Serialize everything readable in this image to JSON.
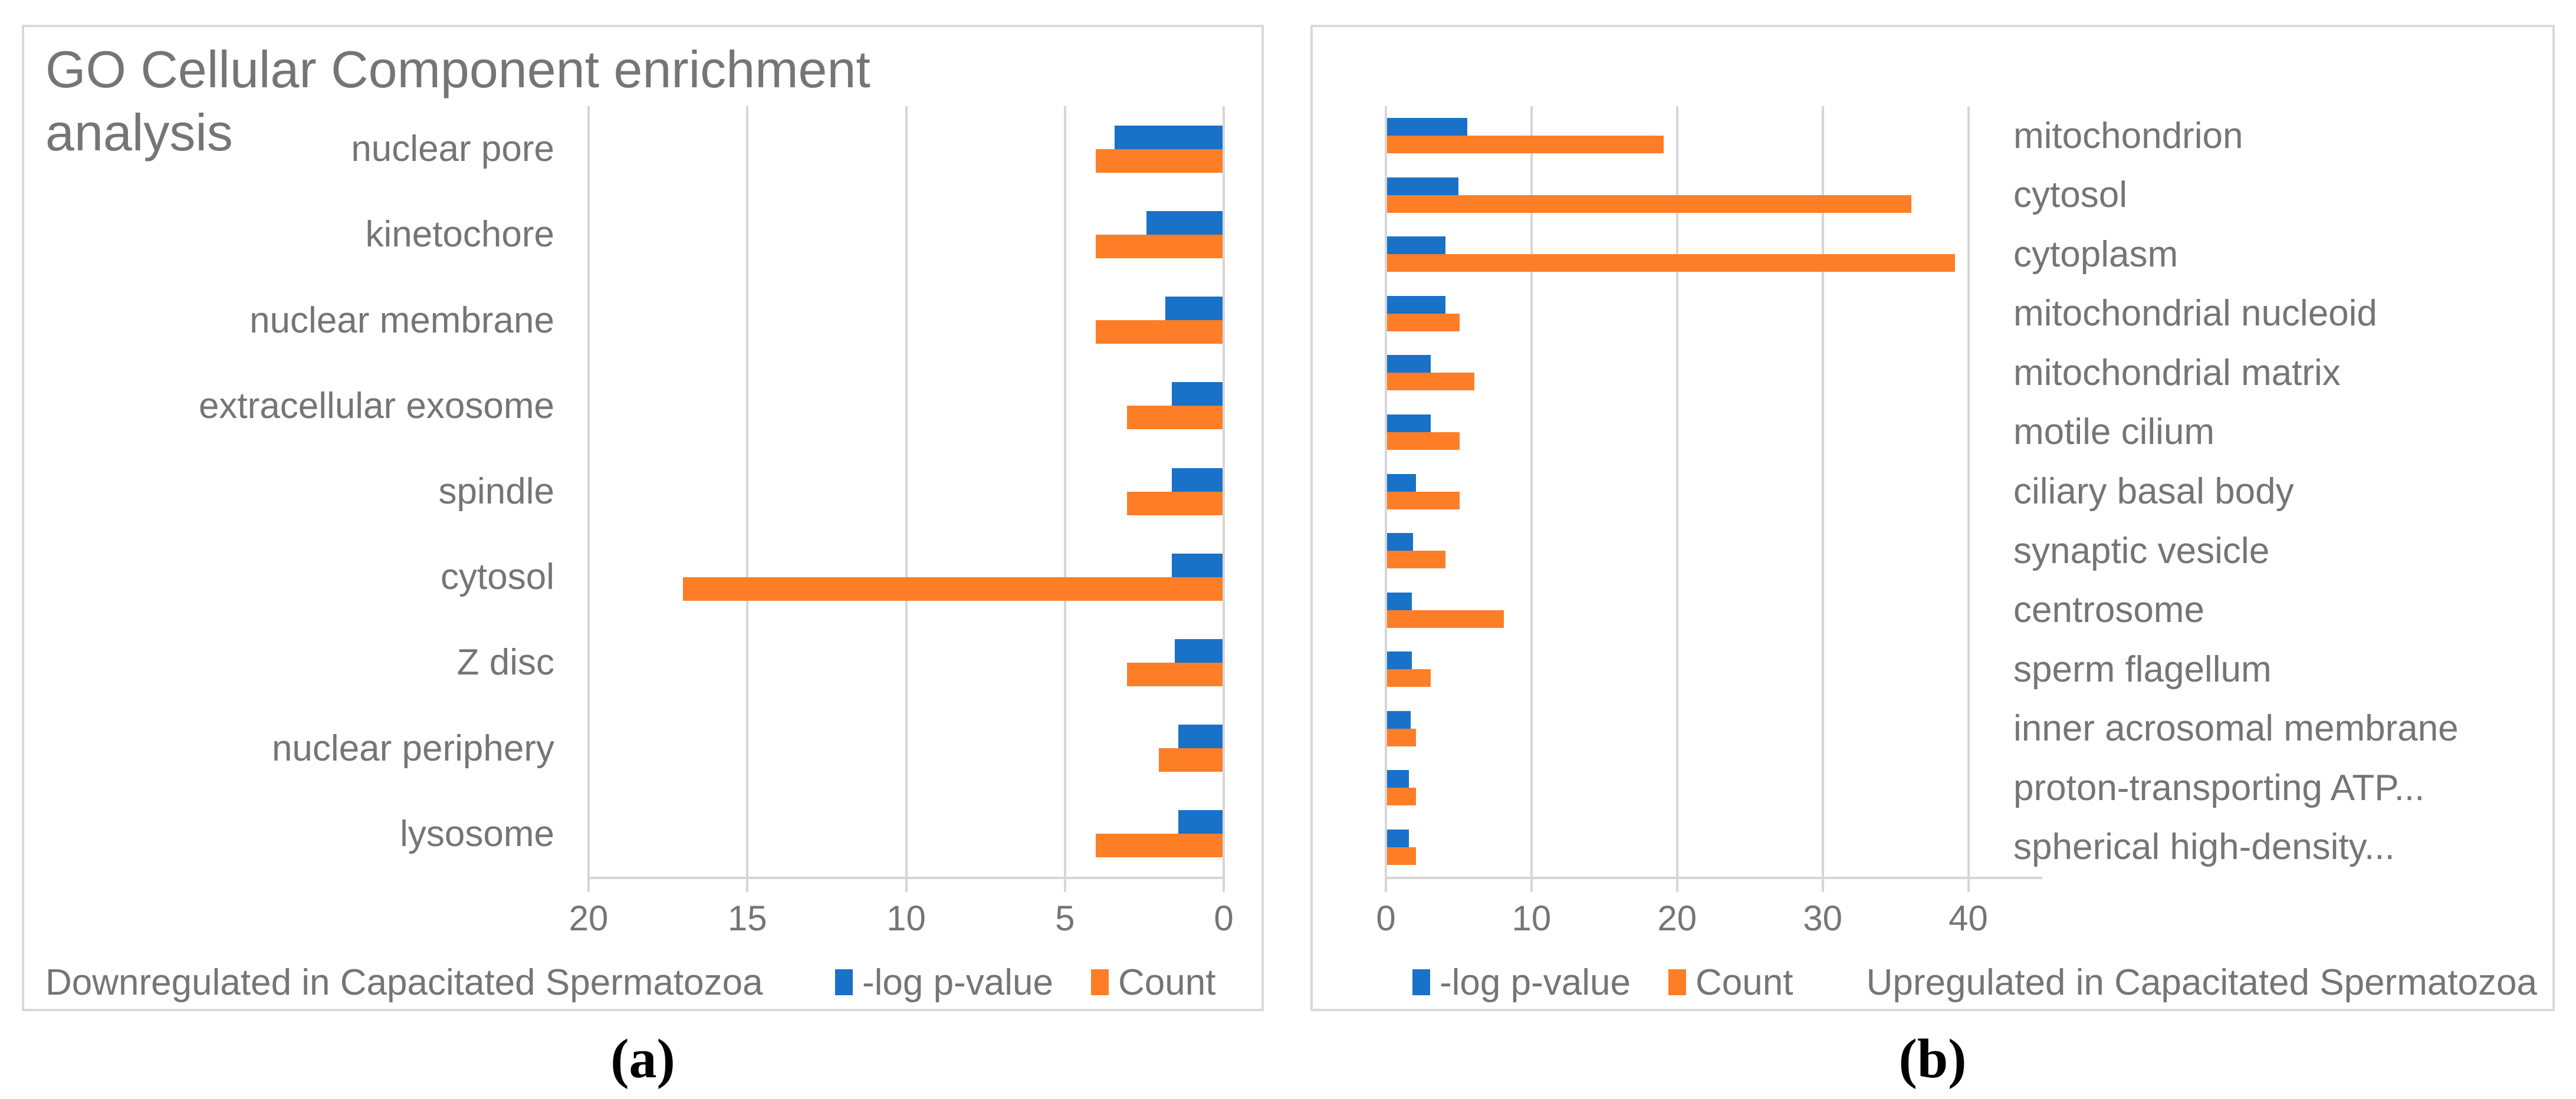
{
  "figure": {
    "title": "GO Cellular Component enrichment analysis",
    "captions": {
      "a": "(a)",
      "b": "(b)"
    }
  },
  "colors": {
    "pvalue_blue": "#1971C8",
    "count_orange": "#FD7E27",
    "grid_gray": "#D6D6D6",
    "border_gray": "#D9D9D9",
    "text_gray": "#757575"
  },
  "legend": {
    "pvalue_label": "-log p-value",
    "count_label": "Count"
  },
  "chart_data": [
    {
      "panel": "a",
      "type": "bar",
      "orientation": "horizontal",
      "axis_reversed": true,
      "grid": true,
      "legend_position": "bottom",
      "footer": "Downregulated in Capacitated Spermatozoa",
      "xlim": [
        0,
        20
      ],
      "ticks": [
        20,
        15,
        10,
        5,
        0
      ],
      "categories": [
        "nuclear pore",
        "kinetochore",
        "nuclear membrane",
        "extracellular exosome",
        "spindle",
        "cytosol",
        "Z disc",
        "nuclear periphery",
        "lysosome"
      ],
      "series": [
        {
          "name": "-log p-value",
          "values": [
            3.4,
            2.4,
            1.8,
            1.6,
            1.6,
            1.6,
            1.5,
            1.4,
            1.4
          ]
        },
        {
          "name": "Count",
          "values": [
            4,
            4,
            4,
            3,
            3,
            17,
            3,
            2,
            4
          ]
        }
      ]
    },
    {
      "panel": "b",
      "type": "bar",
      "orientation": "horizontal",
      "axis_reversed": false,
      "grid": true,
      "legend_position": "bottom",
      "footer": "Upregulated in Capacitated Spermatozoa",
      "xlim": [
        0,
        45
      ],
      "ticks": [
        0,
        10,
        20,
        30,
        40
      ],
      "categories": [
        "mitochondrion",
        "cytosol",
        "cytoplasm",
        "mitochondrial nucleoid",
        "mitochondrial matrix",
        "motile cilium",
        "ciliary basal body",
        "synaptic vesicle",
        "centrosome",
        "sperm flagellum",
        "inner acrosomal membrane",
        "proton-transporting ATP...",
        "spherical high-density..."
      ],
      "series": [
        {
          "name": "-log p-value",
          "values": [
            5.5,
            4.9,
            4.0,
            4.0,
            3.0,
            3.0,
            2.0,
            1.8,
            1.7,
            1.7,
            1.6,
            1.5,
            1.5
          ]
        },
        {
          "name": "Count",
          "values": [
            19,
            36,
            39,
            5,
            6,
            5,
            5,
            4,
            8,
            3,
            2,
            2,
            2
          ]
        }
      ]
    }
  ]
}
